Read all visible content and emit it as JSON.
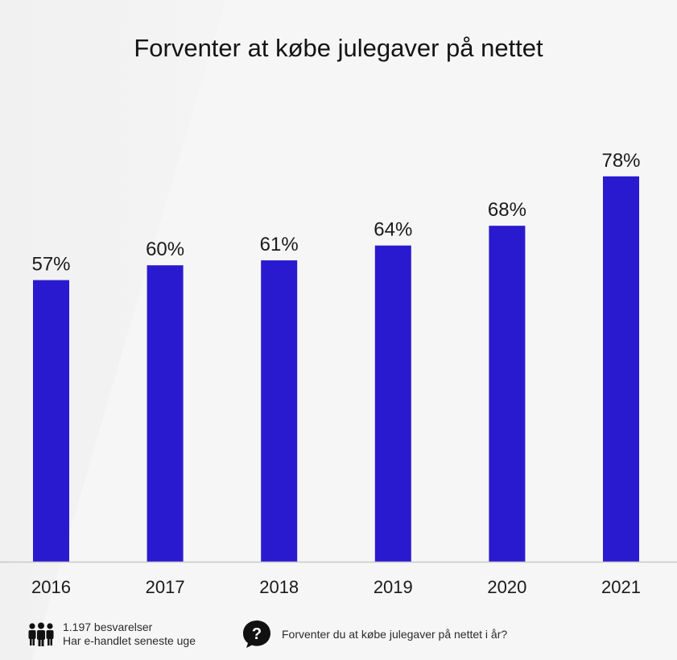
{
  "title": "Forventer at købe julegaver på nettet",
  "chart_data": {
    "type": "bar",
    "title": "Forventer at købe julegaver på nettet",
    "categories": [
      "2016",
      "2017",
      "2018",
      "2019",
      "2020",
      "2021"
    ],
    "values": [
      57,
      60,
      61,
      64,
      68,
      78
    ],
    "value_labels": [
      "57%",
      "60%",
      "61%",
      "64%",
      "68%",
      "78%"
    ],
    "unit": "%",
    "ylim": [
      0,
      100
    ],
    "grid": false,
    "bar_color": "#2a1acf"
  },
  "footer": {
    "respondents": "1.197 besvarelser",
    "criteria": "Har e-handlet seneste uge",
    "question": "Forventer du at købe julegaver på nettet i år?",
    "people_icon": "people-group-icon",
    "question_icon": "question-bubble-icon"
  },
  "colors": {
    "bar": "#2a1acf",
    "axis": "#c8c8c8",
    "text": "#1a1a1a"
  }
}
